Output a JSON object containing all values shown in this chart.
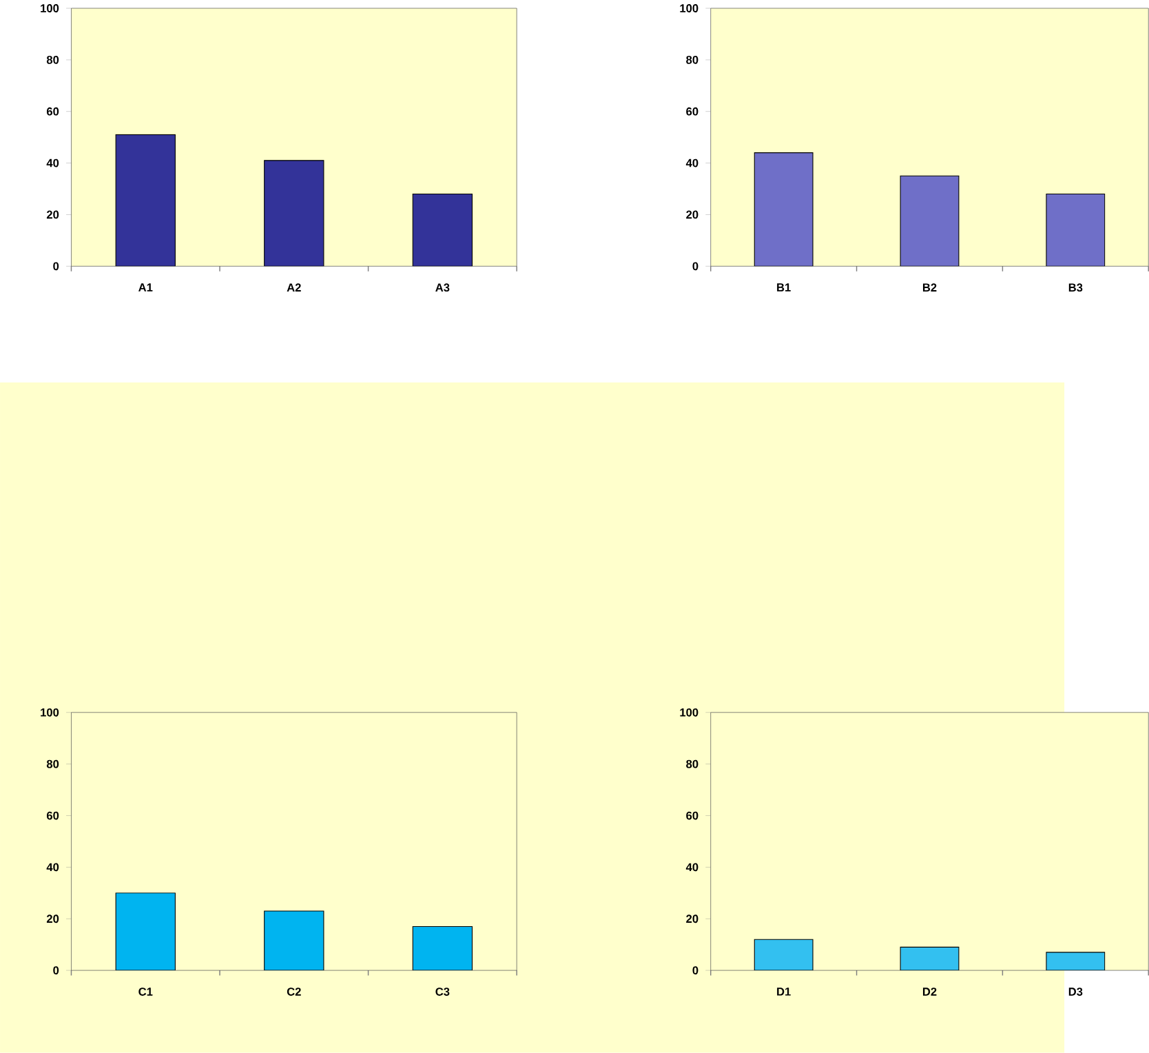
{
  "chart_data": [
    {
      "type": "bar",
      "categories": [
        "A1",
        "A2",
        "A3"
      ],
      "values": [
        51,
        41,
        28
      ],
      "color": "#333399",
      "ylim": [
        0,
        100
      ],
      "yticks": [
        0,
        20,
        40,
        60,
        80,
        100
      ]
    },
    {
      "type": "bar",
      "categories": [
        "B1",
        "B2",
        "B3"
      ],
      "values": [
        44,
        35,
        28
      ],
      "color": "#6f6fc8",
      "ylim": [
        0,
        100
      ],
      "yticks": [
        0,
        20,
        40,
        60,
        80,
        100
      ]
    },
    {
      "type": "bar",
      "categories": [
        "C1",
        "C2",
        "C3"
      ],
      "values": [
        30,
        23,
        17
      ],
      "color": "#00b4f0",
      "ylim": [
        0,
        100
      ],
      "yticks": [
        0,
        20,
        40,
        60,
        80,
        100
      ]
    },
    {
      "type": "bar",
      "categories": [
        "D1",
        "D2",
        "D3"
      ],
      "values": [
        12,
        9,
        7
      ],
      "color": "#33c0f0",
      "ylim": [
        0,
        100
      ],
      "yticks": [
        0,
        20,
        40,
        60,
        80,
        100
      ]
    }
  ]
}
